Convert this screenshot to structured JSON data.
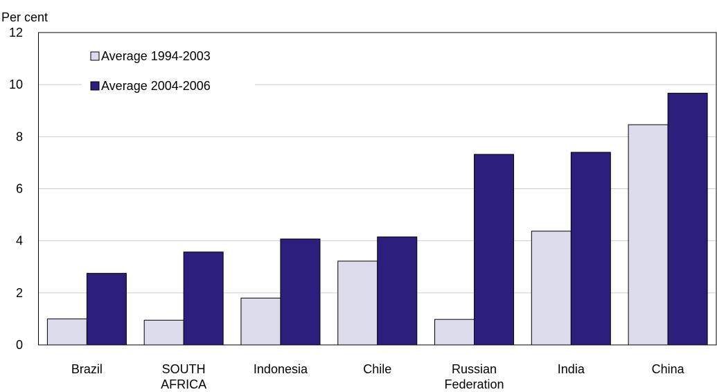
{
  "chart_data": {
    "type": "bar",
    "ylabel": "Per cent",
    "ylim": [
      0,
      12
    ],
    "yticks": [
      0,
      2,
      4,
      6,
      8,
      10,
      12
    ],
    "grid": true,
    "legend_position": "top-left",
    "categories": [
      [
        "Brazil"
      ],
      [
        "SOUTH",
        "AFRICA"
      ],
      [
        "Indonesia"
      ],
      [
        "Chile"
      ],
      [
        "Russian",
        "Federation"
      ],
      [
        "India"
      ],
      [
        "China"
      ]
    ],
    "series": [
      {
        "name": "Average 1994-2003",
        "color": "#dcdcec",
        "values": [
          1.0,
          0.95,
          1.8,
          3.22,
          0.98,
          4.37,
          8.46
        ]
      },
      {
        "name": "Average 2004-2006",
        "color": "#2c1e7c",
        "values": [
          2.75,
          3.57,
          4.07,
          4.15,
          7.32,
          7.4,
          9.67
        ]
      }
    ]
  }
}
